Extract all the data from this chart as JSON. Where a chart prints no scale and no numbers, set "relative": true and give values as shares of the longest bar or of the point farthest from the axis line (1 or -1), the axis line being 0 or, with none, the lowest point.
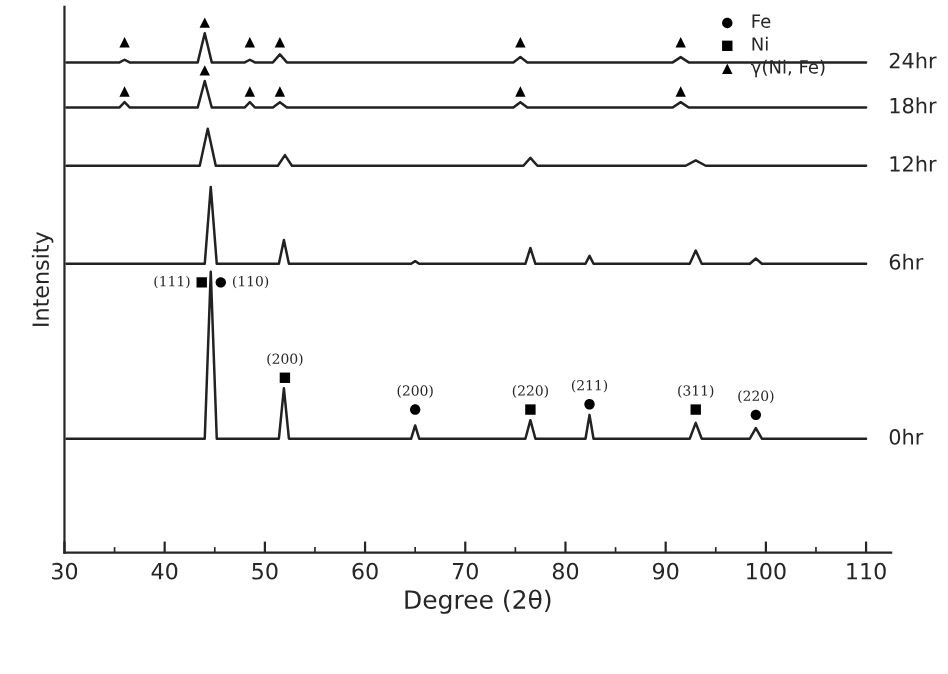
{
  "chart_data": {
    "type": "line",
    "xlabel": "Degree (2θ)",
    "ylabel": "Intensity",
    "relative": true,
    "xlim": [
      30,
      112.5
    ],
    "xticks": [
      30,
      40,
      50,
      60,
      70,
      80,
      90,
      100,
      110
    ],
    "tick_labels": "x",
    "grid": false,
    "legend": "top right",
    "series": [
      {
        "name": "0hr",
        "color": "#222222",
        "x": [
          30.2,
          44.0,
          44.6,
          45.2,
          51.4,
          51.9,
          52.4,
          64.6,
          65.0,
          65.4,
          76.0,
          76.5,
          77.0,
          82.0,
          82.4,
          82.8,
          92.4,
          93.0,
          93.6,
          98.4,
          99.0,
          99.6,
          110
        ],
        "values": [
          0.215,
          0.215,
          0.53,
          0.215,
          0.215,
          0.31,
          0.215,
          0.215,
          0.24,
          0.215,
          0.215,
          0.25,
          0.215,
          0.215,
          0.26,
          0.215,
          0.215,
          0.245,
          0.215,
          0.215,
          0.235,
          0.215,
          0.215
        ]
      },
      {
        "name": "6hr",
        "color": "#222222",
        "x": [
          30.2,
          44.0,
          44.6,
          45.2,
          51.4,
          51.9,
          52.4,
          64.6,
          65.0,
          65.4,
          76.0,
          76.5,
          77.0,
          82.0,
          82.4,
          82.8,
          92.4,
          93.0,
          93.6,
          98.4,
          99.0,
          99.6,
          110
        ],
        "values": [
          0.545,
          0.545,
          0.69,
          0.545,
          0.545,
          0.59,
          0.545,
          0.545,
          0.55,
          0.545,
          0.545,
          0.575,
          0.545,
          0.545,
          0.56,
          0.545,
          0.545,
          0.57,
          0.545,
          0.545,
          0.555,
          0.545,
          0.545
        ]
      },
      {
        "name": "12hr",
        "color": "#222222",
        "x": [
          30.2,
          43.5,
          44.3,
          45.1,
          51.3,
          52.0,
          52.7,
          75.8,
          76.5,
          77.2,
          92.0,
          93.0,
          94.0,
          110
        ],
        "values": [
          0.73,
          0.73,
          0.8,
          0.73,
          0.73,
          0.75,
          0.73,
          0.73,
          0.745,
          0.73,
          0.73,
          0.74,
          0.73,
          0.73
        ]
      },
      {
        "name": "18hr",
        "color": "#222222",
        "x": [
          30.2,
          35.5,
          36.0,
          36.5,
          43.3,
          44.0,
          44.7,
          48.0,
          48.5,
          49.0,
          50.8,
          51.5,
          52.2,
          74.8,
          75.5,
          76.2,
          90.7,
          91.5,
          92.3,
          110
        ],
        "values": [
          0.84,
          0.84,
          0.85,
          0.84,
          0.84,
          0.89,
          0.84,
          0.84,
          0.85,
          0.84,
          0.84,
          0.85,
          0.84,
          0.84,
          0.85,
          0.84,
          0.84,
          0.85,
          0.84,
          0.84
        ]
      },
      {
        "name": "24hr",
        "color": "#222222",
        "x": [
          30.2,
          35.5,
          36.0,
          36.5,
          43.3,
          44.0,
          44.7,
          48.0,
          48.5,
          49.0,
          50.8,
          51.5,
          52.2,
          74.8,
          75.5,
          76.2,
          90.7,
          91.5,
          92.3,
          110
        ],
        "values": [
          0.925,
          0.925,
          0.93,
          0.925,
          0.925,
          0.98,
          0.925,
          0.925,
          0.93,
          0.925,
          0.925,
          0.94,
          0.925,
          0.925,
          0.935,
          0.925,
          0.925,
          0.935,
          0.925,
          0.925
        ]
      },
      {
        "type": "scatter",
        "name": "Fe",
        "color": "#000000",
        "marker": "circle",
        "x": [
          45.6,
          65.0,
          82.4,
          99.0
        ],
        "values": [
          0.51,
          0.27,
          0.28,
          0.26
        ]
      },
      {
        "type": "scatter",
        "name": "Ni",
        "color": "#000000",
        "marker": "square",
        "x": [
          43.7,
          52.0,
          76.5,
          93.0
        ],
        "values": [
          0.51,
          0.33,
          0.27,
          0.27
        ]
      },
      {
        "type": "scatter",
        "name": "γ(Ni, Fe)",
        "color": "#000000",
        "marker": "triangle",
        "x": [
          36.0,
          44.0,
          48.5,
          51.5,
          75.5,
          91.5,
          36.0,
          44.0,
          48.5,
          51.5,
          75.5,
          91.5
        ],
        "values": [
          0.87,
          0.91,
          0.87,
          0.87,
          0.87,
          0.87,
          0.963,
          1.0,
          0.963,
          0.963,
          0.963,
          0.963
        ]
      }
    ],
    "annotations": [
      {
        "text": "(111)",
        "x": 43.7,
        "y": 0.51
      },
      {
        "text": "(110)",
        "x": 45.6,
        "y": 0.51
      },
      {
        "text": "(200)",
        "x": 52.0,
        "y": 0.33
      },
      {
        "text": "(200)",
        "x": 65.0,
        "y": 0.27
      },
      {
        "text": "(220)",
        "x": 76.5,
        "y": 0.27
      },
      {
        "text": "(211)",
        "x": 82.4,
        "y": 0.28
      },
      {
        "text": "(311)",
        "x": 93.0,
        "y": 0.27
      },
      {
        "text": "(220)",
        "x": 99.0,
        "y": 0.26
      }
    ]
  }
}
